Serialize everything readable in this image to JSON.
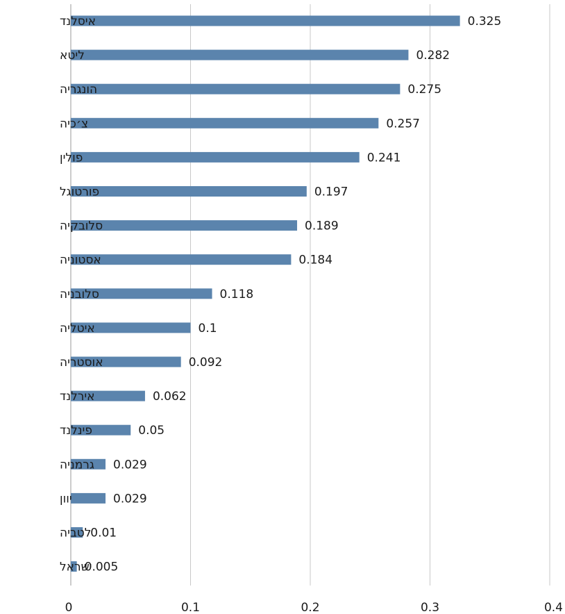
{
  "chart_data": {
    "type": "bar",
    "orientation": "horizontal",
    "categories": [
      "איסלנד",
      "ליטא",
      "הונגריה",
      "צ׳כיה",
      "פולין",
      "פורטוגל",
      "סלובקיה",
      "אסטוניה",
      "סלובניה",
      "איטליה",
      "אוסטריה",
      "אירלנד",
      "פינלנד",
      "גרמניה",
      "יוון",
      "לטביה",
      "ישראל"
    ],
    "values": [
      0.325,
      0.282,
      0.275,
      0.257,
      0.241,
      0.197,
      0.189,
      0.184,
      0.118,
      0.1,
      0.092,
      0.062,
      0.05,
      0.029,
      0.029,
      0.01,
      0.005
    ],
    "value_labels": [
      "0.325",
      "0.282",
      "0.275",
      "0.257",
      "0.241",
      "0.197",
      "0.189",
      "0.184",
      "0.118",
      "0.1",
      "0.092",
      "0.062",
      "0.05",
      "0.029",
      "0.029",
      "0.01",
      "0.005"
    ],
    "x_ticks": [
      0,
      0.1,
      0.2,
      0.3,
      0.4
    ],
    "x_tick_labels": [
      "0",
      "0.1",
      "0.2",
      "0.3",
      "0.4"
    ],
    "xlim": [
      0,
      0.4
    ],
    "grid": true,
    "bar_color": "#5b84ad",
    "title": "",
    "xlabel": "",
    "ylabel": ""
  }
}
